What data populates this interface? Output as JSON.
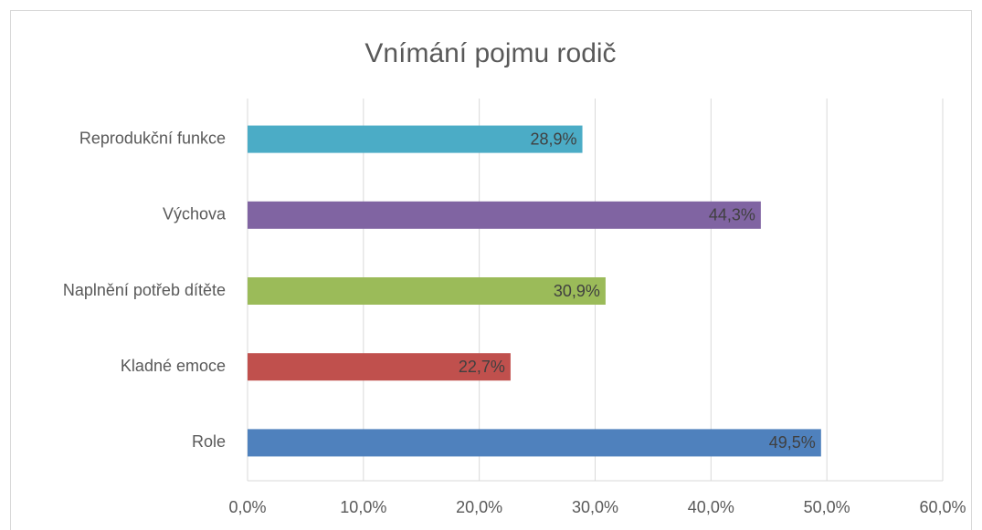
{
  "chart_data": {
    "type": "barh",
    "title": "Vnímání pojmu rodič",
    "categories": [
      "Reprodukční funkce",
      "Výchova",
      "Naplnění potřeb dítěte",
      "Kladné emoce",
      "Role"
    ],
    "values": [
      28.9,
      44.3,
      30.9,
      22.7,
      49.5
    ],
    "value_labels": [
      "28,9%",
      "44,3%",
      "30,9%",
      "22,7%",
      "49,5%"
    ],
    "colors": [
      "#4bacc6",
      "#8064a2",
      "#9bbb59",
      "#c0504d",
      "#4f81bd"
    ],
    "xlim": [
      0,
      60
    ],
    "xticks": [
      {
        "value": 0,
        "label": "0,0%"
      },
      {
        "value": 10,
        "label": "10,0%"
      },
      {
        "value": 20,
        "label": "20,0%"
      },
      {
        "value": 30,
        "label": "30,0%"
      },
      {
        "value": 40,
        "label": "40,0%"
      },
      {
        "value": 50,
        "label": "50,0%"
      },
      {
        "value": 60,
        "label": "60,0%"
      }
    ],
    "grid": true
  }
}
